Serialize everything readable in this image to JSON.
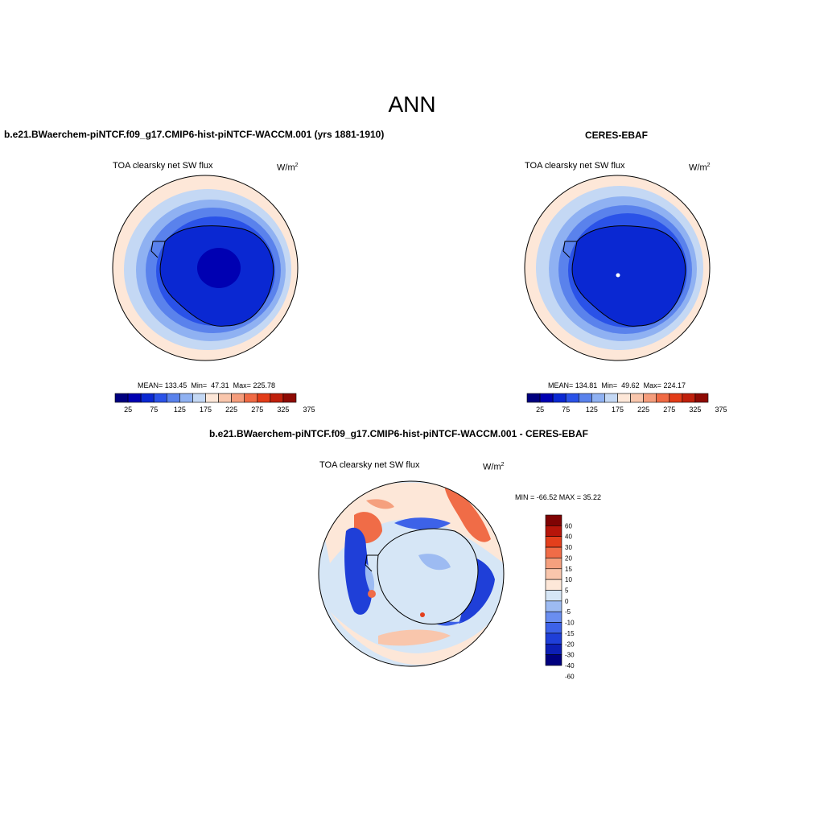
{
  "page_title": "ANN",
  "colors": {
    "palette_abs": [
      "#00007f",
      "#0000b2",
      "#0a28d2",
      "#2a52e8",
      "#5a82ec",
      "#8fb1f2",
      "#c4d8f4",
      "#fde7d8",
      "#f9c6ac",
      "#f59d7c",
      "#f06a44",
      "#e33c18",
      "#c0200c",
      "#8e0a04"
    ],
    "palette_diff": [
      "#00007f",
      "#0d1fb5",
      "#1f3fd8",
      "#3d62e8",
      "#6a8ef0",
      "#9dbbf2",
      "#d6e6f6",
      "#fde7d8",
      "#f9c6ac",
      "#f5a07e",
      "#f06c47",
      "#e33f1c",
      "#b6150a",
      "#7f0303"
    ]
  },
  "panels": [
    {
      "id": "model",
      "title": "b.e21.BWaerchem-piNTCF.f09_g17.CMIP6-hist-piNTCF-WACCM.001 (yrs 1881-1910)",
      "variable": "TOA clearsky net SW flux",
      "units": "W/m",
      "units_sup": "2",
      "stats": {
        "mean_label": "MEAN=",
        "mean": "133.45",
        "min_label": "Min=",
        "min": "47.31",
        "max_label": "Max=",
        "max": "225.78"
      },
      "colorbar_labels": [
        "25",
        "75",
        "125",
        "175",
        "225",
        "275",
        "325",
        "375"
      ]
    },
    {
      "id": "obs",
      "title": "CERES-EBAF",
      "variable": "TOA clearsky net SW flux",
      "units": "W/m",
      "units_sup": "2",
      "stats": {
        "mean_label": "MEAN=",
        "mean": "134.81",
        "min_label": "Min=",
        "min": "49.62",
        "max_label": "Max=",
        "max": "224.17"
      },
      "colorbar_labels": [
        "25",
        "75",
        "125",
        "175",
        "225",
        "275",
        "325",
        "375"
      ]
    },
    {
      "id": "diff",
      "title": "b.e21.BWaerchem-piNTCF.f09_g17.CMIP6-hist-piNTCF-WACCM.001 - CERES-EBAF",
      "variable": "TOA clearsky net SW flux",
      "units": "W/m",
      "units_sup": "2",
      "minmax_text": "MIN = -66.52 MAX =  35.22",
      "colorbar_labels": [
        "60",
        "40",
        "30",
        "20",
        "15",
        "10",
        "5",
        "0",
        "-5",
        "-10",
        "-15",
        "-20",
        "-30",
        "-40",
        "-60"
      ]
    }
  ]
}
